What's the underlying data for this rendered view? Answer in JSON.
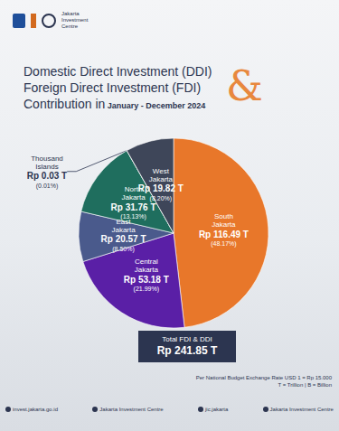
{
  "chart_data": {
    "type": "pie",
    "title": [
      "Domestic Direct Investment (DDI)",
      "Foreign Direct Investment (FDI)",
      "Contribution in"
    ],
    "title_symbol": "&",
    "period": "January - December 2024",
    "categories": [
      "South Jakarta",
      "Central Jakarta",
      "East Jakarta",
      "North Jakarta",
      "Thousand Islands",
      "West Jakarta"
    ],
    "values": [
      116.49,
      53.18,
      20.57,
      31.76,
      0.03,
      19.82
    ],
    "value_labels": [
      "Rp 116.49 T",
      "Rp 53.18 T",
      "Rp 20.57 T",
      "Rp 31.76 T",
      "Rp 0.03 T",
      "Rp 19.82 T"
    ],
    "percent_labels": [
      "(48.17%)",
      "(21.99%)",
      "(8.50%)",
      "(13.13%)",
      "(0.01%)",
      "(8.20%)"
    ],
    "colors": [
      "#e8772a",
      "#5a1fa6",
      "#4a5a8c",
      "#1f6e5e",
      "#a9b3c6",
      "#3e4659"
    ],
    "data_labels": true
  },
  "header": "Jakarta Investment Centre",
  "total": {
    "label": "Total FDI & DDI",
    "value": "Rp 241.85 T"
  },
  "notes": [
    "Per National Budget Exchange Rate USD 1 = Rp 15.000",
    "T = Trillion | B = Billion"
  ],
  "footer": [
    "invest.jakarta.go.id",
    "Jakarta Investment Centre",
    "jic.jakarta",
    "Jakarta Investment Centre"
  ]
}
